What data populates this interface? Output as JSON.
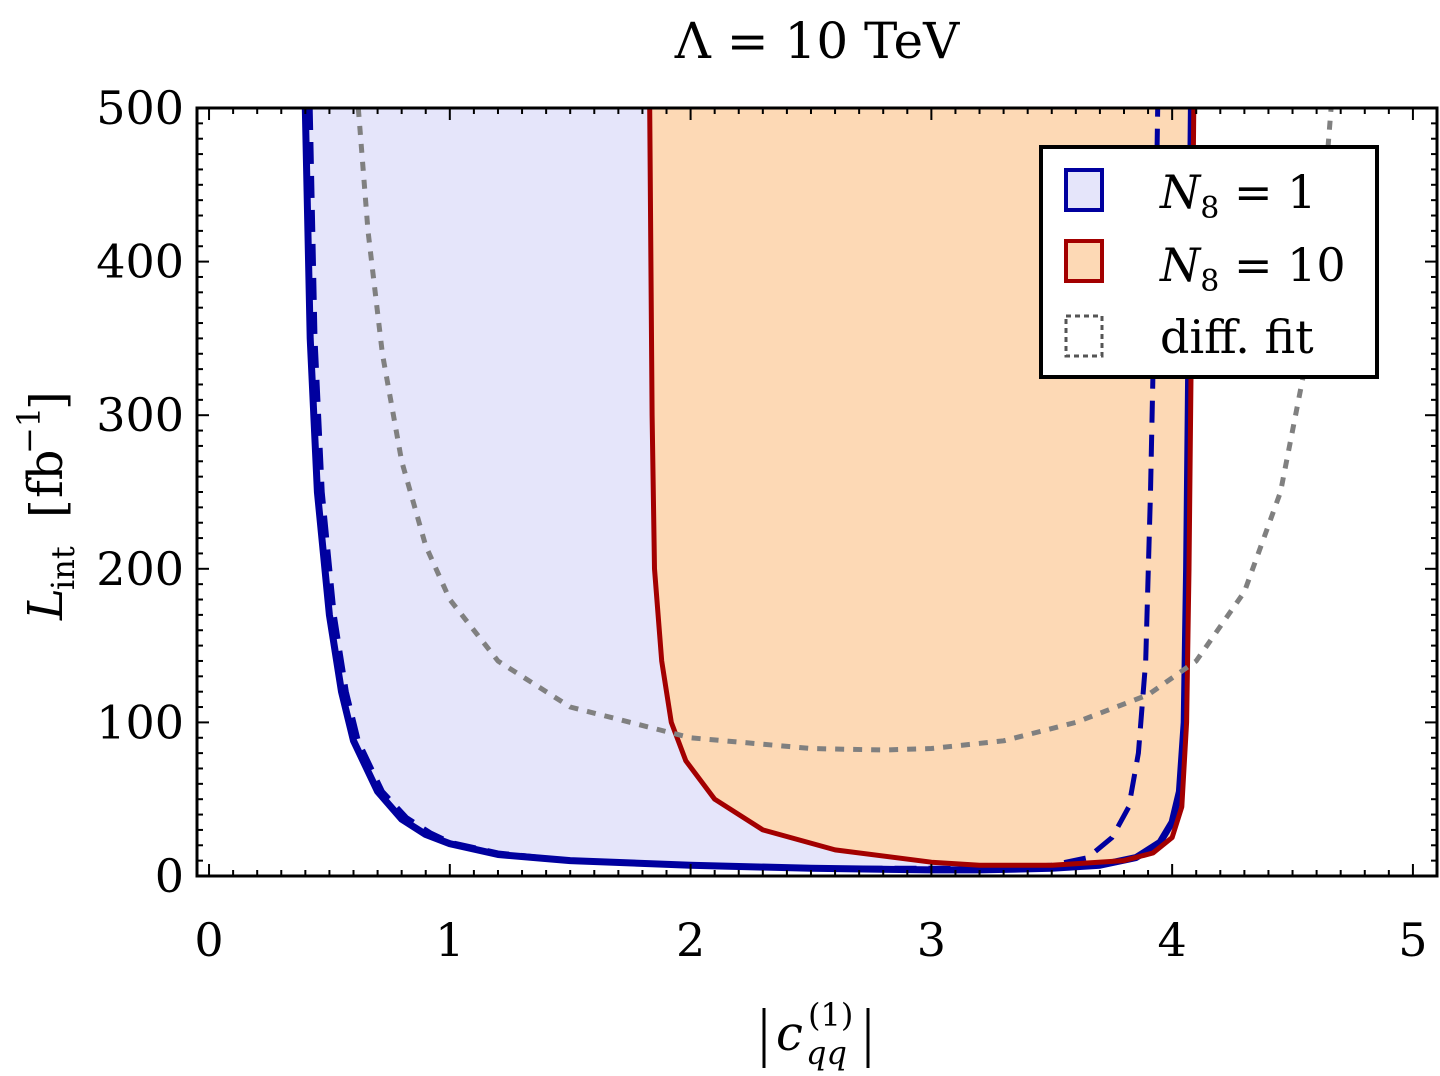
{
  "chart_data": {
    "type": "area",
    "title": "Λ = 10 TeV",
    "xlabel": "|c_qq^(1)|",
    "xlabel_parts": {
      "var": "c",
      "sub": "qq",
      "sup": "(1)"
    },
    "ylabel": "L_int [fb^-1]",
    "ylabel_parts": {
      "var": "L",
      "sub": "int",
      "unit": "fb",
      "unit_sup": "−1"
    },
    "xlim": [
      -0.05,
      5.1
    ],
    "ylim": [
      0,
      500
    ],
    "x_ticks": [
      "0",
      "1",
      "2",
      "3",
      "4",
      "5"
    ],
    "y_ticks": [
      "0",
      "100",
      "200",
      "300",
      "400",
      "500"
    ],
    "grid": false,
    "legend_position": "top-right",
    "legend": [
      {
        "label": "N_8 = 1",
        "var": "N",
        "sub": "8",
        "rest": " = 1"
      },
      {
        "label": "N_8 = 10",
        "var": "N",
        "sub": "8",
        "rest": " = 10"
      },
      {
        "label": "diff. fit",
        "var": "",
        "sub": "",
        "rest": "diff. fit"
      }
    ],
    "series": [
      {
        "name": "N_8 = 1",
        "color": "#00009f",
        "fill": "#e5e5fa",
        "style": "solid",
        "points": [
          [
            0.4,
            500
          ],
          [
            0.42,
            350
          ],
          [
            0.45,
            250
          ],
          [
            0.5,
            170
          ],
          [
            0.55,
            120
          ],
          [
            0.6,
            88
          ],
          [
            0.7,
            55
          ],
          [
            0.8,
            37
          ],
          [
            0.9,
            27
          ],
          [
            1.0,
            21
          ],
          [
            1.2,
            14
          ],
          [
            1.5,
            10
          ],
          [
            2.0,
            7
          ],
          [
            2.5,
            5
          ],
          [
            3.0,
            4
          ],
          [
            3.2,
            4
          ],
          [
            3.5,
            5
          ],
          [
            3.7,
            7
          ],
          [
            3.85,
            12
          ],
          [
            3.95,
            22
          ],
          [
            4.0,
            35
          ],
          [
            4.03,
            55
          ],
          [
            4.05,
            100
          ],
          [
            4.06,
            200
          ],
          [
            4.07,
            350
          ],
          [
            4.08,
            500
          ]
        ]
      },
      {
        "name": "N_8 = 1 (dashed)",
        "color": "#00009f",
        "style": "dashed",
        "points": [
          [
            0.42,
            500
          ],
          [
            0.44,
            350
          ],
          [
            0.47,
            250
          ],
          [
            0.52,
            170
          ],
          [
            0.57,
            120
          ],
          [
            0.62,
            88
          ],
          [
            0.72,
            55
          ],
          [
            0.82,
            38
          ],
          [
            0.92,
            28
          ],
          [
            1.0,
            22
          ],
          [
            1.2,
            15
          ],
          [
            1.5,
            10
          ],
          [
            2.0,
            7
          ],
          [
            2.5,
            5
          ],
          [
            3.0,
            5
          ],
          [
            3.2,
            5
          ],
          [
            3.5,
            7
          ],
          [
            3.65,
            12
          ],
          [
            3.75,
            25
          ],
          [
            3.82,
            45
          ],
          [
            3.86,
            80
          ],
          [
            3.89,
            140
          ],
          [
            3.91,
            250
          ],
          [
            3.93,
            400
          ],
          [
            3.94,
            500
          ]
        ]
      },
      {
        "name": "N_8 = 10",
        "color": "#a30000",
        "fill": "#fdd9b5",
        "style": "solid",
        "points": [
          [
            1.83,
            500
          ],
          [
            1.84,
            300
          ],
          [
            1.85,
            200
          ],
          [
            1.88,
            140
          ],
          [
            1.92,
            100
          ],
          [
            1.98,
            75
          ],
          [
            2.1,
            50
          ],
          [
            2.3,
            30
          ],
          [
            2.6,
            17
          ],
          [
            3.0,
            9
          ],
          [
            3.2,
            7
          ],
          [
            3.5,
            7
          ],
          [
            3.8,
            10
          ],
          [
            3.92,
            15
          ],
          [
            4.0,
            25
          ],
          [
            4.04,
            45
          ],
          [
            4.06,
            100
          ],
          [
            4.07,
            200
          ],
          [
            4.08,
            350
          ],
          [
            4.09,
            500
          ]
        ]
      },
      {
        "name": "diff. fit",
        "color": "#808080",
        "style": "dotted",
        "points": [
          [
            0.62,
            500
          ],
          [
            0.66,
            420
          ],
          [
            0.72,
            340
          ],
          [
            0.8,
            270
          ],
          [
            0.9,
            215
          ],
          [
            1.0,
            180
          ],
          [
            1.2,
            140
          ],
          [
            1.5,
            110
          ],
          [
            2.0,
            90
          ],
          [
            2.5,
            83
          ],
          [
            2.8,
            82
          ],
          [
            3.0,
            83
          ],
          [
            3.3,
            88
          ],
          [
            3.6,
            100
          ],
          [
            3.9,
            118
          ],
          [
            4.1,
            140
          ],
          [
            4.3,
            185
          ],
          [
            4.45,
            250
          ],
          [
            4.55,
            330
          ],
          [
            4.62,
            420
          ],
          [
            4.66,
            500
          ]
        ]
      }
    ]
  }
}
